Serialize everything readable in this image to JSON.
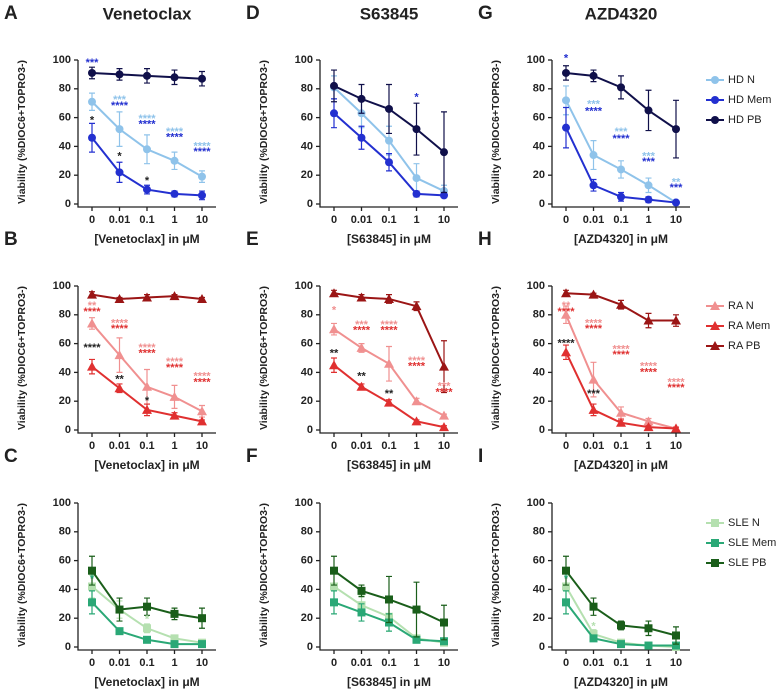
{
  "chart_data": [
    {
      "panel": "A",
      "title": "Venetoclax",
      "type": "line",
      "y_label": "Viability (%DIOC6+TOPRO3-)",
      "x_label": "[Venetoclax] in μM",
      "categories": [
        "0",
        "0.01",
        "0.1",
        "1",
        "10"
      ],
      "ylim": [
        0,
        100
      ],
      "yticks": [
        0,
        20,
        40,
        60,
        80,
        100
      ],
      "series": [
        {
          "color": "#8fc3ea",
          "marker": "circle",
          "values": [
            71,
            52,
            38,
            30,
            19
          ],
          "errors": [
            6,
            12,
            10,
            6,
            4
          ]
        },
        {
          "color": "#2330d0",
          "marker": "circle",
          "values": [
            46,
            22,
            10,
            7,
            6
          ],
          "errors": [
            10,
            7,
            3,
            2,
            3
          ]
        },
        {
          "color": "#10104a",
          "marker": "circle",
          "values": [
            91,
            90,
            89,
            88,
            87
          ],
          "errors": [
            4,
            4,
            5,
            5,
            5
          ]
        }
      ],
      "annotations": [
        {
          "text": "***",
          "color": "#2330d0",
          "x": "0",
          "y": 98
        },
        {
          "text": "*",
          "color": "#222222",
          "x": "0",
          "y": 58
        },
        {
          "text": "***",
          "color": "#8fc3ea",
          "x": "0.01",
          "y": 72
        },
        {
          "text": "****",
          "color": "#2330d0",
          "x": "0.01",
          "y": 68
        },
        {
          "text": "*",
          "color": "#222222",
          "x": "0.01",
          "y": 33
        },
        {
          "text": "****",
          "color": "#8fc3ea",
          "x": "0.1",
          "y": 59
        },
        {
          "text": "****",
          "color": "#2330d0",
          "x": "0.1",
          "y": 55
        },
        {
          "text": "*",
          "color": "#222222",
          "x": "0.1",
          "y": 16
        },
        {
          "text": "****",
          "color": "#8fc3ea",
          "x": "1",
          "y": 50
        },
        {
          "text": "****",
          "color": "#2330d0",
          "x": "1",
          "y": 46
        },
        {
          "text": "****",
          "color": "#8fc3ea",
          "x": "10",
          "y": 40
        },
        {
          "text": "****",
          "color": "#2330d0",
          "x": "10",
          "y": 36
        }
      ]
    },
    {
      "panel": "B",
      "type": "line",
      "y_label": "Viability (%DIOC6+TOPRO3-)",
      "x_label": "[Venetoclax] in μM",
      "categories": [
        "0",
        "0.01",
        "0.1",
        "1",
        "10"
      ],
      "ylim": [
        0,
        100
      ],
      "yticks": [
        0,
        20,
        40,
        60,
        80,
        100
      ],
      "series": [
        {
          "color": "#f09090",
          "marker": "triangle",
          "values": [
            74,
            52,
            30,
            23,
            13
          ],
          "errors": [
            4,
            12,
            12,
            8,
            4
          ]
        },
        {
          "color": "#e03030",
          "marker": "triangle",
          "values": [
            44,
            29,
            14,
            10,
            6
          ],
          "errors": [
            5,
            3,
            4,
            2,
            1
          ]
        },
        {
          "color": "#9b1515",
          "marker": "triangle",
          "values": [
            94,
            91,
            92,
            93,
            91
          ],
          "errors": [
            2,
            1,
            2,
            1,
            1
          ]
        }
      ],
      "annotations": [
        {
          "text": "**",
          "color": "#f09090",
          "x": "0",
          "y": 86
        },
        {
          "text": "****",
          "color": "#e03030",
          "x": "0",
          "y": 82
        },
        {
          "text": "****",
          "color": "#222222",
          "x": "0",
          "y": 57
        },
        {
          "text": "****",
          "color": "#f09090",
          "x": "0.01",
          "y": 74
        },
        {
          "text": "****",
          "color": "#e03030",
          "x": "0.01",
          "y": 70
        },
        {
          "text": "**",
          "color": "#222222",
          "x": "0.01",
          "y": 35
        },
        {
          "text": "****",
          "color": "#f09090",
          "x": "0.1",
          "y": 57
        },
        {
          "text": "****",
          "color": "#e03030",
          "x": "0.1",
          "y": 53
        },
        {
          "text": "*",
          "color": "#222222",
          "x": "0.1",
          "y": 20
        },
        {
          "text": "****",
          "color": "#f09090",
          "x": "1",
          "y": 47
        },
        {
          "text": "****",
          "color": "#e03030",
          "x": "1",
          "y": 43
        },
        {
          "text": "****",
          "color": "#f09090",
          "x": "10",
          "y": 37
        },
        {
          "text": "****",
          "color": "#e03030",
          "x": "10",
          "y": 33
        }
      ]
    },
    {
      "panel": "C",
      "type": "line",
      "y_label": "Viability (%DIOC6+TOPRO3-)",
      "x_label": "[Venetoclax] in μM",
      "categories": [
        "0",
        "0.01",
        "0.1",
        "1",
        "10"
      ],
      "ylim": [
        0,
        100
      ],
      "yticks": [
        0,
        20,
        40,
        60,
        80,
        100
      ],
      "series": [
        {
          "color": "#b5e0b0",
          "marker": "square",
          "values": [
            42,
            26,
            13,
            6,
            3
          ],
          "errors": [
            8,
            6,
            3,
            2,
            1
          ]
        },
        {
          "color": "#2aa876",
          "marker": "square",
          "values": [
            31,
            11,
            5,
            2,
            2
          ],
          "errors": [
            8,
            2,
            1,
            1,
            1
          ]
        },
        {
          "color": "#1a5e1a",
          "marker": "square",
          "values": [
            53,
            26,
            28,
            23,
            20
          ],
          "errors": [
            10,
            8,
            6,
            4,
            7
          ]
        }
      ],
      "annotations": [
        {
          "text": "*",
          "color": "#2aa876",
          "x": "0",
          "y": 47
        },
        {
          "text": "*",
          "color": "#b5e0b0",
          "x": "0.1",
          "y": 19
        }
      ]
    },
    {
      "panel": "D",
      "title": "S63845",
      "type": "line",
      "y_label": "Viability (%DIOC6+TOPRO3-)",
      "x_label": "[S63845] in μM",
      "categories": [
        "0",
        "0.01",
        "0.1",
        "1",
        "10"
      ],
      "ylim": [
        0,
        100
      ],
      "yticks": [
        0,
        20,
        40,
        60,
        80,
        100
      ],
      "series": [
        {
          "color": "#8fc3ea",
          "marker": "circle",
          "values": [
            81,
            63,
            44,
            18,
            9
          ],
          "errors": [
            8,
            10,
            10,
            10,
            4
          ]
        },
        {
          "color": "#2330d0",
          "marker": "circle",
          "values": [
            63,
            46,
            29,
            7,
            6
          ],
          "errors": [
            10,
            8,
            6,
            2,
            1
          ]
        },
        {
          "color": "#10104a",
          "marker": "circle",
          "values": [
            82,
            73,
            66,
            52,
            36
          ],
          "errors": [
            11,
            10,
            17,
            18,
            28
          ]
        }
      ],
      "annotations": [
        {
          "text": "*",
          "color": "#2330d0",
          "x": "1",
          "y": 74
        }
      ]
    },
    {
      "panel": "E",
      "type": "line",
      "y_label": "Viability (%DIOC6+TOPRO3-)",
      "x_label": "[S63845] in μM",
      "categories": [
        "0",
        "0.01",
        "0.1",
        "1",
        "10"
      ],
      "ylim": [
        0,
        100
      ],
      "yticks": [
        0,
        20,
        40,
        60,
        80,
        100
      ],
      "series": [
        {
          "color": "#f09090",
          "marker": "triangle",
          "values": [
            70,
            57,
            46,
            20,
            10
          ],
          "errors": [
            4,
            3,
            12,
            2,
            1
          ]
        },
        {
          "color": "#e03030",
          "marker": "triangle",
          "values": [
            45,
            30,
            19,
            6,
            2
          ],
          "errors": [
            5,
            2,
            2,
            1,
            1
          ]
        },
        {
          "color": "#9b1515",
          "marker": "triangle",
          "values": [
            95,
            92,
            91,
            86,
            44
          ],
          "errors": [
            2,
            2,
            3,
            3,
            18
          ]
        }
      ],
      "annotations": [
        {
          "text": "*",
          "color": "#f09090",
          "x": "0",
          "y": 83
        },
        {
          "text": "**",
          "color": "#222222",
          "x": "0",
          "y": 53
        },
        {
          "text": "***",
          "color": "#f09090",
          "x": "0.01",
          "y": 73
        },
        {
          "text": "****",
          "color": "#e03030",
          "x": "0.01",
          "y": 69
        },
        {
          "text": "**",
          "color": "#222222",
          "x": "0.01",
          "y": 37
        },
        {
          "text": "****",
          "color": "#f09090",
          "x": "0.1",
          "y": 73
        },
        {
          "text": "****",
          "color": "#e03030",
          "x": "0.1",
          "y": 69
        },
        {
          "text": "**",
          "color": "#222222",
          "x": "0.1",
          "y": 25
        },
        {
          "text": "****",
          "color": "#f09090",
          "x": "1",
          "y": 48
        },
        {
          "text": "****",
          "color": "#e03030",
          "x": "1",
          "y": 44
        },
        {
          "text": "***",
          "color": "#f09090",
          "x": "10",
          "y": 30
        },
        {
          "text": "****",
          "color": "#e03030",
          "x": "10",
          "y": 26
        }
      ]
    },
    {
      "panel": "F",
      "type": "line",
      "y_label": "Viability (%DIOC6+TOPRO3-)",
      "x_label": "[S63845] in μM",
      "categories": [
        "0",
        "0.01",
        "0.1",
        "1",
        "10"
      ],
      "ylim": [
        0,
        100
      ],
      "yticks": [
        0,
        20,
        40,
        60,
        80,
        100
      ],
      "series": [
        {
          "color": "#b5e0b0",
          "marker": "square",
          "values": [
            42,
            29,
            21,
            6,
            3
          ],
          "errors": [
            10,
            7,
            10,
            2,
            2
          ]
        },
        {
          "color": "#2aa876",
          "marker": "square",
          "values": [
            31,
            24,
            17,
            5,
            4
          ],
          "errors": [
            8,
            6,
            6,
            2,
            1
          ]
        },
        {
          "color": "#1a5e1a",
          "marker": "square",
          "values": [
            53,
            39,
            33,
            26,
            17
          ],
          "errors": [
            10,
            4,
            16,
            19,
            12
          ]
        }
      ],
      "annotations": []
    },
    {
      "panel": "G",
      "title": "AZD4320",
      "type": "line",
      "y_label": "Viability (%DIOC6+TOPRO3-)",
      "x_label": "[AZD4320] in μM",
      "categories": [
        "0",
        "0.01",
        "0.1",
        "1",
        "10"
      ],
      "ylim": [
        0,
        100
      ],
      "yticks": [
        0,
        20,
        40,
        60,
        80,
        100
      ],
      "legend": "right",
      "series": [
        {
          "name": "HD N",
          "color": "#8fc3ea",
          "marker": "circle",
          "values": [
            72,
            34,
            24,
            13,
            1
          ],
          "errors": [
            10,
            10,
            6,
            5,
            1
          ]
        },
        {
          "name": "HD Mem",
          "color": "#2330d0",
          "marker": "circle",
          "values": [
            53,
            13,
            5,
            3,
            1
          ],
          "errors": [
            14,
            4,
            3,
            2,
            1
          ]
        },
        {
          "name": "HD PB",
          "color": "#10104a",
          "marker": "circle",
          "values": [
            91,
            89,
            81,
            65,
            52
          ],
          "errors": [
            5,
            4,
            8,
            14,
            20
          ]
        }
      ],
      "annotations": [
        {
          "text": "*",
          "color": "#2330d0",
          "x": "0",
          "y": 101
        },
        {
          "text": "***",
          "color": "#8fc3ea",
          "x": "0.01",
          "y": 69
        },
        {
          "text": "****",
          "color": "#2330d0",
          "x": "0.01",
          "y": 64
        },
        {
          "text": "***",
          "color": "#8fc3ea",
          "x": "0.1",
          "y": 50
        },
        {
          "text": "****",
          "color": "#2330d0",
          "x": "0.1",
          "y": 45
        },
        {
          "text": "***",
          "color": "#8fc3ea",
          "x": "1",
          "y": 33
        },
        {
          "text": "***",
          "color": "#2330d0",
          "x": "1",
          "y": 29
        },
        {
          "text": "**",
          "color": "#8fc3ea",
          "x": "10",
          "y": 15
        },
        {
          "text": "***",
          "color": "#2330d0",
          "x": "10",
          "y": 11
        }
      ]
    },
    {
      "panel": "H",
      "type": "line",
      "y_label": "Viability (%DIOC6+TOPRO3-)",
      "x_label": "[AZD4320] in μM",
      "categories": [
        "0",
        "0.01",
        "0.1",
        "1",
        "10"
      ],
      "ylim": [
        0,
        100
      ],
      "yticks": [
        0,
        20,
        40,
        60,
        80,
        100
      ],
      "legend": "right",
      "series": [
        {
          "name": "RA N",
          "color": "#f09090",
          "marker": "triangle",
          "values": [
            80,
            35,
            12,
            6,
            1
          ],
          "errors": [
            6,
            12,
            4,
            2,
            1
          ]
        },
        {
          "name": "RA Mem",
          "color": "#e03030",
          "marker": "triangle",
          "values": [
            54,
            14,
            5,
            2,
            1
          ],
          "errors": [
            5,
            4,
            2,
            1,
            1
          ]
        },
        {
          "name": "RA PB",
          "color": "#9b1515",
          "marker": "triangle",
          "values": [
            95,
            94,
            87,
            76,
            76
          ],
          "errors": [
            2,
            1,
            3,
            5,
            4
          ]
        }
      ],
      "annotations": [
        {
          "text": "**",
          "color": "#f09090",
          "x": "0",
          "y": 86
        },
        {
          "text": "****",
          "color": "#e03030",
          "x": "0",
          "y": 82
        },
        {
          "text": "****",
          "color": "#222222",
          "x": "0",
          "y": 60
        },
        {
          "text": "****",
          "color": "#f09090",
          "x": "0.01",
          "y": 74
        },
        {
          "text": "****",
          "color": "#e03030",
          "x": "0.01",
          "y": 70
        },
        {
          "text": "***",
          "color": "#222222",
          "x": "0.01",
          "y": 25
        },
        {
          "text": "****",
          "color": "#f09090",
          "x": "0.1",
          "y": 56
        },
        {
          "text": "****",
          "color": "#e03030",
          "x": "0.1",
          "y": 52
        },
        {
          "text": "****",
          "color": "#f09090",
          "x": "1",
          "y": 44
        },
        {
          "text": "****",
          "color": "#e03030",
          "x": "1",
          "y": 40
        },
        {
          "text": "****",
          "color": "#f09090",
          "x": "10",
          "y": 33
        },
        {
          "text": "****",
          "color": "#e03030",
          "x": "10",
          "y": 29
        }
      ]
    },
    {
      "panel": "I",
      "type": "line",
      "y_label": "Viability (%DIOC6+TOPRO3-)",
      "x_label": "[AZD4320] in μM",
      "categories": [
        "0",
        "0.01",
        "0.1",
        "1",
        "10"
      ],
      "ylim": [
        0,
        100
      ],
      "yticks": [
        0,
        20,
        40,
        60,
        80,
        100
      ],
      "legend": "right",
      "series": [
        {
          "name": "SLE N",
          "color": "#b5e0b0",
          "marker": "square",
          "values": [
            42,
            9,
            3,
            1,
            0
          ],
          "errors": [
            12,
            3,
            1,
            1,
            1
          ]
        },
        {
          "name": "SLE Mem",
          "color": "#2aa876",
          "marker": "square",
          "values": [
            31,
            6,
            2,
            1,
            1
          ],
          "errors": [
            8,
            2,
            1,
            1,
            1
          ]
        },
        {
          "name": "SLE PB",
          "color": "#1a5e1a",
          "marker": "square",
          "values": [
            53,
            28,
            15,
            13,
            8
          ],
          "errors": [
            10,
            6,
            3,
            5,
            6
          ]
        }
      ],
      "annotations": [
        {
          "text": "*",
          "color": "#2aa876",
          "x": "0",
          "y": 47
        },
        {
          "text": "*",
          "color": "#b5e0b0",
          "x": "0.01",
          "y": 14
        }
      ]
    }
  ]
}
